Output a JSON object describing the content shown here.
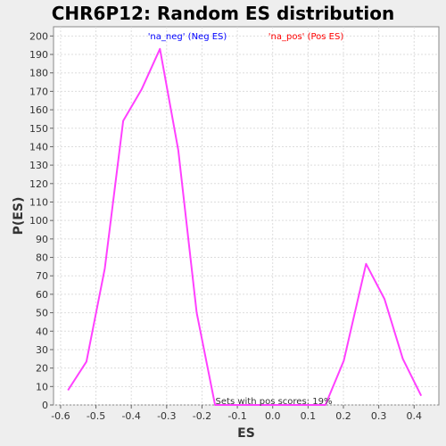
{
  "chart_data": {
    "type": "line",
    "title": "CHR6P12: Random ES distribution",
    "xlabel": "ES",
    "ylabel": "P(ES)",
    "xlim": [
      -0.62,
      0.47
    ],
    "ylim": [
      0,
      205
    ],
    "x_ticks": [
      "-0.6",
      "-0.5",
      "-0.4",
      "-0.3",
      "-0.2",
      "-0.1",
      "0.0",
      "0.1",
      "0.2",
      "0.3",
      "0.4"
    ],
    "x_tick_values": [
      -0.6,
      -0.5,
      -0.4,
      -0.3,
      -0.2,
      -0.1,
      0.0,
      0.1,
      0.2,
      0.3,
      0.4
    ],
    "y_ticks": [
      "0",
      "10",
      "20",
      "30",
      "40",
      "50",
      "60",
      "70",
      "80",
      "90",
      "100",
      "110",
      "120",
      "130",
      "140",
      "150",
      "160",
      "170",
      "180",
      "190",
      "200"
    ],
    "y_tick_values": [
      0,
      10,
      20,
      30,
      40,
      50,
      60,
      70,
      80,
      90,
      100,
      110,
      120,
      130,
      140,
      150,
      160,
      170,
      180,
      190,
      200
    ],
    "grid": true,
    "series": [
      {
        "color": "#ff40ff",
        "points": [
          [
            -0.579,
            8
          ],
          [
            -0.527,
            23.5
          ],
          [
            -0.475,
            74
          ],
          [
            -0.423,
            154
          ],
          [
            -0.371,
            171
          ],
          [
            -0.319,
            193
          ],
          [
            -0.267,
            138
          ],
          [
            -0.215,
            50
          ],
          [
            -0.163,
            0
          ],
          [
            -0.111,
            0
          ],
          [
            -0.059,
            0
          ],
          [
            -0.007,
            0
          ],
          [
            0.045,
            0
          ],
          [
            0.097,
            0
          ],
          [
            0.149,
            0
          ],
          [
            0.201,
            24
          ],
          [
            0.264,
            76.5
          ],
          [
            0.316,
            57.5
          ],
          [
            0.368,
            25
          ],
          [
            0.42,
            5
          ]
        ]
      }
    ],
    "annotations": {
      "neg": {
        "text": "'na_neg' (Neg ES)",
        "color": "#0000ff"
      },
      "pos": {
        "text": "'na_pos' (Pos ES)",
        "color": "#ff0000"
      },
      "pos_scores": {
        "text": "Sets with pos scores: 19%",
        "color": "#333333"
      }
    }
  }
}
